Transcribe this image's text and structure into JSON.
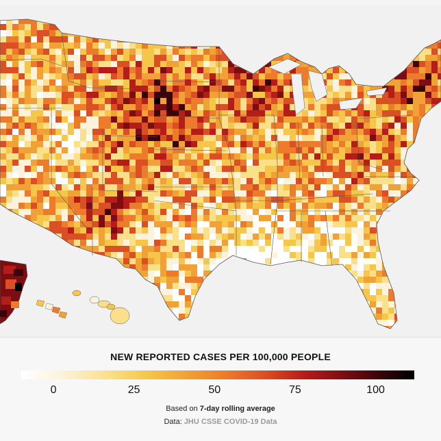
{
  "legend": {
    "title": "NEW REPORTED CASES PER 100,000 PEOPLE",
    "ticks": [
      {
        "value": 0,
        "label": "0"
      },
      {
        "value": 25,
        "label": "25"
      },
      {
        "value": 50,
        "label": "50"
      },
      {
        "value": 75,
        "label": "75"
      },
      {
        "value": 100,
        "label": "100"
      }
    ],
    "min": -10,
    "max": 112,
    "colors": [
      "#ffffff",
      "#fdf3dc",
      "#fbe08a",
      "#f6c64a",
      "#f1a236",
      "#ec7c2b",
      "#db4f25",
      "#b51d18",
      "#7c0d12",
      "#3a0509",
      "#000000"
    ]
  },
  "note": {
    "prefix": "Based on ",
    "emphasis": "7-day rolling average"
  },
  "source": {
    "prefix": "Data: ",
    "name": "JHU CSSE COVID-19 Data"
  },
  "map": {
    "background": "#f1f1f1",
    "border_color": "#555555"
  }
}
